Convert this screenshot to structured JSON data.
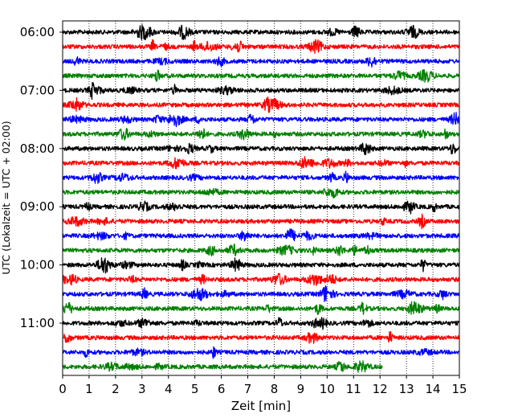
{
  "chart_data": {
    "type": "line",
    "title": "",
    "xlabel": "Zeit  [min]",
    "ylabel": "UTC (Lokalzeit = UTC + 02:00)",
    "xlim": [
      0,
      15
    ],
    "x_ticks": [
      "0",
      "1",
      "2",
      "3",
      "4",
      "5",
      "6",
      "7",
      "8",
      "9",
      "10",
      "11",
      "12",
      "13",
      "14",
      "15"
    ],
    "y_ticks": [
      "06:00",
      "07:00",
      "08:00",
      "09:00",
      "10:00",
      "11:00"
    ],
    "row_interval_min": 15,
    "grid": "vertical dotted",
    "color_cycle": [
      "#000000",
      "#ff0000",
      "#0000ff",
      "#008000"
    ],
    "traces": [
      {
        "start": "06:00",
        "length_min": 15,
        "color": "#000000"
      },
      {
        "start": "06:15",
        "length_min": 15,
        "color": "#ff0000"
      },
      {
        "start": "06:30",
        "length_min": 15,
        "color": "#0000ff"
      },
      {
        "start": "06:45",
        "length_min": 15,
        "color": "#008000"
      },
      {
        "start": "07:00",
        "length_min": 15,
        "color": "#000000"
      },
      {
        "start": "07:15",
        "length_min": 15,
        "color": "#ff0000"
      },
      {
        "start": "07:30",
        "length_min": 15,
        "color": "#0000ff"
      },
      {
        "start": "07:45",
        "length_min": 15,
        "color": "#008000"
      },
      {
        "start": "08:00",
        "length_min": 15,
        "color": "#000000"
      },
      {
        "start": "08:15",
        "length_min": 15,
        "color": "#ff0000"
      },
      {
        "start": "08:30",
        "length_min": 15,
        "color": "#0000ff"
      },
      {
        "start": "08:45",
        "length_min": 15,
        "color": "#008000"
      },
      {
        "start": "09:00",
        "length_min": 15,
        "color": "#000000"
      },
      {
        "start": "09:15",
        "length_min": 15,
        "color": "#ff0000"
      },
      {
        "start": "09:30",
        "length_min": 15,
        "color": "#0000ff"
      },
      {
        "start": "09:45",
        "length_min": 15,
        "color": "#008000"
      },
      {
        "start": "10:00",
        "length_min": 15,
        "color": "#000000"
      },
      {
        "start": "10:15",
        "length_min": 15,
        "color": "#ff0000"
      },
      {
        "start": "10:30",
        "length_min": 15,
        "color": "#0000ff"
      },
      {
        "start": "10:45",
        "length_min": 15,
        "color": "#008000"
      },
      {
        "start": "11:00",
        "length_min": 15,
        "color": "#000000"
      },
      {
        "start": "11:15",
        "length_min": 15,
        "color": "#ff0000"
      },
      {
        "start": "11:30",
        "length_min": 15,
        "color": "#0000ff"
      },
      {
        "start": "11:45",
        "length_min": 12.1,
        "color": "#008000"
      }
    ]
  }
}
